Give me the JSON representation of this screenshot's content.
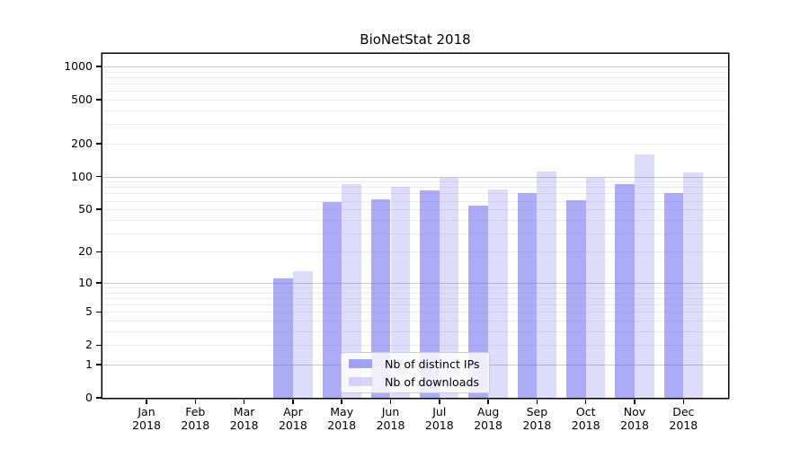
{
  "title": "BioNetStat 2018",
  "colors": {
    "background": "#ffffff",
    "spine": "#000000",
    "text": "#000000",
    "grid_minor": "#ededed",
    "grid_major": "#c6c6c6",
    "bar_hue": "#6666ee",
    "bar_ips_display": "#abaaf5",
    "bar_downloads_display": "#dcdcfb",
    "legend_border": "#cccccc"
  },
  "legend": {
    "items": [
      {
        "label": "Nb of distinct IPs",
        "swatch": "ips-swatch"
      },
      {
        "label": "Nb of downloads",
        "swatch": "downloads-swatch"
      }
    ]
  },
  "chart_data": {
    "type": "bar",
    "title": "BioNetStat 2018",
    "categories": [
      "Jan",
      "Feb",
      "Mar",
      "Apr",
      "May",
      "Jun",
      "Jul",
      "Aug",
      "Sep",
      "Oct",
      "Nov",
      "Dec"
    ],
    "year_label": "2018",
    "series": [
      {
        "name": "Nb of distinct IPs",
        "values": [
          0,
          0,
          0,
          11,
          58,
          62,
          75,
          54,
          71,
          61,
          85,
          70
        ],
        "color": "#6666ee",
        "alpha": 0.55
      },
      {
        "name": "Nb of downloads",
        "values": [
          0,
          0,
          0,
          13,
          86,
          80,
          98,
          76,
          111,
          97,
          160,
          110
        ],
        "color": "#6666ee",
        "alpha": 0.22
      }
    ],
    "xlabel": "",
    "ylabel": "",
    "yscale": "log(1+x)",
    "yticks": [
      0,
      1,
      2,
      5,
      10,
      20,
      50,
      100,
      200,
      500,
      1000
    ],
    "grid_major_values": [
      1,
      10,
      100,
      1000
    ],
    "grid_minor_values": [
      2,
      3,
      4,
      5,
      6,
      7,
      8,
      9,
      20,
      30,
      40,
      50,
      60,
      70,
      80,
      90,
      200,
      300,
      400,
      500,
      600,
      700,
      800,
      900
    ],
    "ylim": [
      0,
      1300
    ],
    "grid": "on",
    "legend_position": "lower center"
  }
}
